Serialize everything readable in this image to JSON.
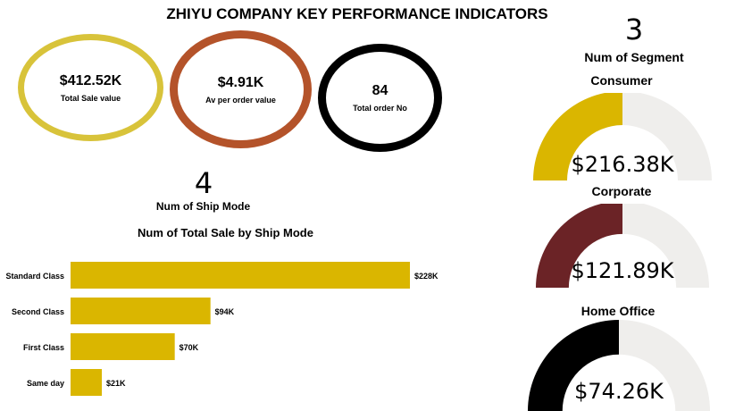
{
  "header": {
    "title": "ZHIYU COMPANY KEY PERFORMANCE INDICATORS"
  },
  "kpis": [
    {
      "value": "$412.52K",
      "label": "Total Sale value",
      "color": "#d8c33a"
    },
    {
      "value": "$4.91K",
      "label": "Av per order value",
      "color": "#b4532a"
    },
    {
      "value": "84",
      "label": "Total order No",
      "color": "#000000"
    }
  ],
  "ship_mode": {
    "count": "4",
    "label": "Num of Ship Mode"
  },
  "segments": {
    "count": "3",
    "label": "Num of Segment",
    "items": [
      {
        "name": "Consumer",
        "value": "$216.38K",
        "color": "#dab600"
      },
      {
        "name": "Corporate",
        "value": "$121.89K",
        "color": "#6b2326"
      },
      {
        "name": "Home Office",
        "value": "$74.26K",
        "color": "#000000"
      }
    ],
    "track_color": "#efeeec"
  },
  "chart_data": {
    "type": "bar",
    "orientation": "horizontal",
    "title": "Num of Total Sale by Ship Mode",
    "categories": [
      "Standard Class",
      "Second Class",
      "First Class",
      "Same day"
    ],
    "values": [
      228,
      94,
      70,
      21
    ],
    "data_labels": [
      "$228K",
      "$94K",
      "$70K",
      "$21K"
    ],
    "unit": "$K",
    "bar_color": "#dab600"
  }
}
